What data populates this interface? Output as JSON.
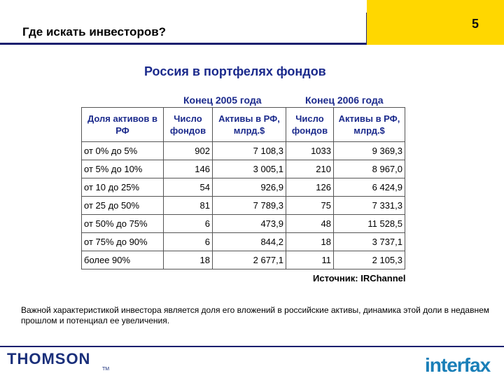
{
  "header": {
    "title": "Где искать инвесторов?",
    "page_number": "5"
  },
  "slide": {
    "title": "Россия в портфелях фондов"
  },
  "table": {
    "group_headers": [
      "Конец 2005 года",
      "Конец 2006 года"
    ],
    "col_headers": [
      "Доля активов в РФ",
      "Число фондов",
      "Активы в РФ, млрд.$",
      "Число фондов",
      "Активы в РФ, млрд.$"
    ],
    "rows": [
      [
        "от 0% до 5%",
        "902",
        "7 108,3",
        "1033",
        "9 369,3"
      ],
      [
        "от 5% до 10%",
        "146",
        "3 005,1",
        "210",
        "8 967,0"
      ],
      [
        "от 10 до 25%",
        "54",
        "926,9",
        "126",
        "6 424,9"
      ],
      [
        "от 25 до 50%",
        "81",
        "7 789,3",
        "75",
        "7 331,3"
      ],
      [
        "от 50% до 75%",
        "6",
        "473,9",
        "48",
        "11 528,5"
      ],
      [
        "от 75% до 90%",
        "6",
        "844,2",
        "18",
        "3 737,1"
      ],
      [
        "более 90%",
        "18",
        "2 677,1",
        "11",
        "2 105,3"
      ]
    ]
  },
  "source": "Источник: IRChannel",
  "note": "Важной характеристикой инвестора является доля его вложений в российские активы, динамика этой доли в недавнем прошлом и потенциал ее увеличения.",
  "footer": {
    "left_logo": "THOMSON",
    "left_tm": "TM",
    "right_logo": "interfax"
  },
  "colors": {
    "accent_yellow": "#ffd700",
    "navy": "#1a1f6e",
    "header_blue": "#1b2a8c",
    "interfax_blue": "#1a7fb8"
  }
}
